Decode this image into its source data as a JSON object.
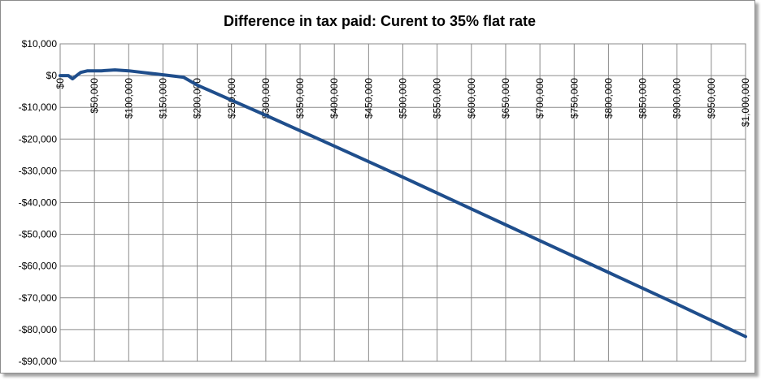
{
  "chart_data": {
    "type": "line",
    "title": "Difference in tax paid: Curent to 35% flat rate",
    "xlabel": "",
    "ylabel": "",
    "xlim": [
      0,
      1000000
    ],
    "ylim": [
      -90000,
      10000
    ],
    "grid": true,
    "legend": "none",
    "x_tick_labels": [
      "$0",
      "$50,000",
      "$100,000",
      "$150,000",
      "$200,000",
      "$250,000",
      "$300,000",
      "$350,000",
      "$400,000",
      "$450,000",
      "$500,000",
      "$550,000",
      "$600,000",
      "$650,000",
      "$700,000",
      "$750,000",
      "$800,000",
      "$850,000",
      "$900,000",
      "$950,000",
      "$1,000,000"
    ],
    "x_tick_values": [
      0,
      50000,
      100000,
      150000,
      200000,
      250000,
      300000,
      350000,
      400000,
      450000,
      500000,
      550000,
      600000,
      650000,
      700000,
      750000,
      800000,
      850000,
      900000,
      950000,
      1000000
    ],
    "y_tick_labels": [
      "$10,000",
      "$0",
      "-$10,000",
      "-$20,000",
      "-$30,000",
      "-$40,000",
      "-$50,000",
      "-$60,000",
      "-$70,000",
      "-$80,000",
      "-$90,000"
    ],
    "y_tick_values": [
      10000,
      0,
      -10000,
      -20000,
      -30000,
      -40000,
      -50000,
      -60000,
      -70000,
      -80000,
      -90000
    ],
    "series": [
      {
        "color": "#1f4e8c",
        "x": [
          0,
          12000,
          18000,
          24000,
          30000,
          40000,
          60000,
          80000,
          100000,
          120000,
          140000,
          160000,
          180000,
          200000,
          300000,
          400000,
          500000,
          600000,
          700000,
          800000,
          900000,
          1000000
        ],
        "y": [
          0,
          0,
          -1000,
          0,
          1000,
          1500,
          1500,
          1800,
          1500,
          1000,
          500,
          0,
          -500,
          -3000,
          -12500,
          -22200,
          -32000,
          -42000,
          -52000,
          -62000,
          -72000,
          -82200
        ]
      }
    ]
  }
}
